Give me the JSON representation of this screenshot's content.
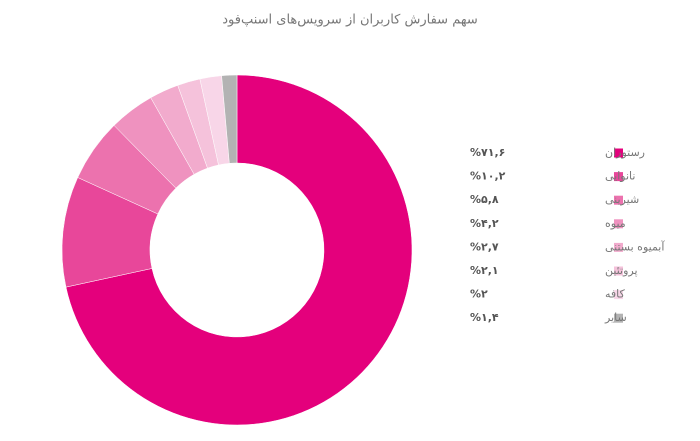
{
  "chart_data": {
    "type": "donut",
    "title": "سهم سفارش کاربران از سرویس‌های اسنپ‌فود",
    "categories": [
      "رستوران",
      "نانوایی",
      "شیرینی",
      "میوه",
      "آبمیوه بستنی",
      "پروتئین",
      "کافه",
      "سایر"
    ],
    "values": [
      71.6,
      10.2,
      5.8,
      4.2,
      2.7,
      2.1,
      2,
      1.4
    ],
    "value_labels": [
      "%۷۱,۶",
      "%۱۰,۲",
      "%۵,۸",
      "%۴,۲",
      "%۲,۷",
      "%۲,۱",
      "%۲",
      "%۱,۴"
    ],
    "colors": [
      "#e4007c",
      "#e8479a",
      "#ec72ae",
      "#ef92bf",
      "#f2abcd",
      "#f5c2db",
      "#f8d6e8",
      "#b3b3b3"
    ]
  }
}
